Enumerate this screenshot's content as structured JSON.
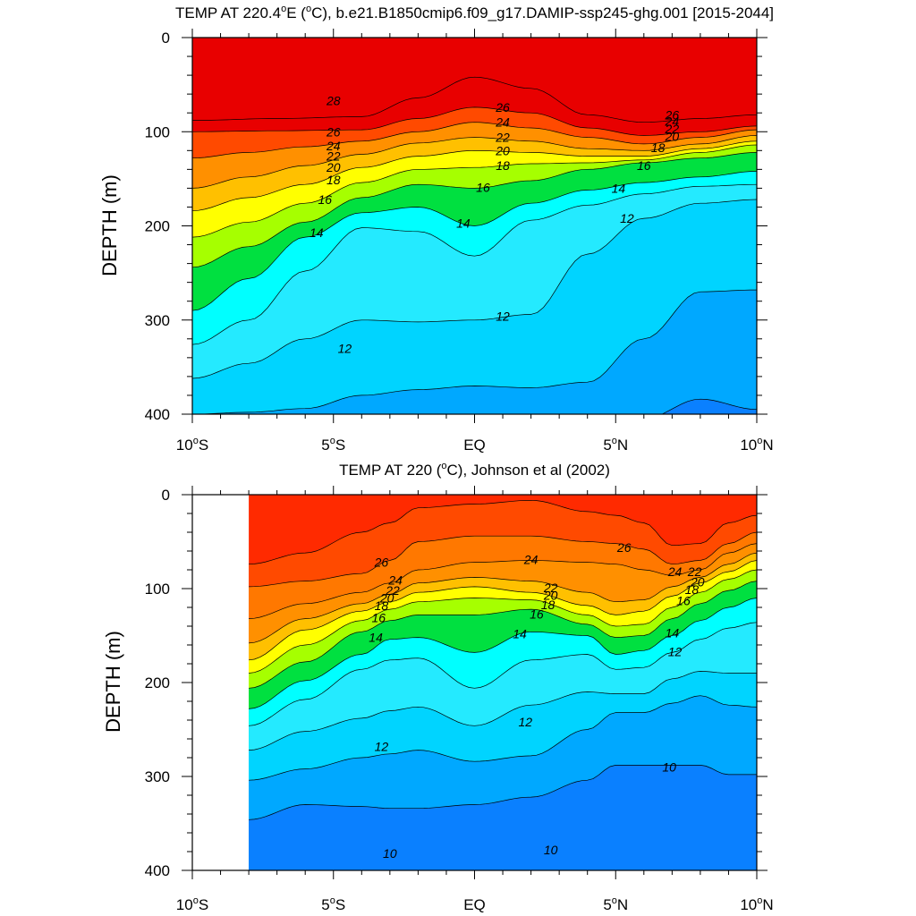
{
  "chart_data": [
    {
      "type": "heatmap",
      "title": "TEMP AT 220.4°E (°C), b.e21.B1850cmip6.f09_g17.DAMIP-ssp245-ghg.001 [2015-2044]",
      "ylabel": "DEPTH (m)",
      "xlabel": "",
      "x_range": [
        -10,
        10
      ],
      "ylim": [
        0,
        400
      ],
      "y_reversed": true,
      "x_ticks": [
        "10°S",
        "5°S",
        "EQ",
        "5°N",
        "10°N"
      ],
      "y_ticks": [
        "0",
        "100",
        "200",
        "300",
        "400"
      ],
      "contour_interval": 1,
      "isotherms": [
        {
          "t": 28,
          "x": [
            -10,
            -7,
            -4,
            -2,
            0,
            2,
            4,
            6,
            8,
            10
          ],
          "d": [
            88,
            86,
            84,
            64,
            42,
            54,
            82,
            90,
            86,
            82
          ],
          "labels": [
            [
              -5,
              67
            ]
          ]
        },
        {
          "t": 26,
          "x": [
            -10,
            -7,
            -4,
            -2,
            0,
            2,
            4,
            6,
            8,
            10
          ],
          "d": [
            100,
            99,
            98,
            86,
            74,
            80,
            96,
            104,
            100,
            94
          ],
          "labels": [
            [
              -5,
              100
            ],
            [
              1,
              74
            ],
            [
              7,
              82
            ]
          ]
        },
        {
          "t": 24,
          "x": [
            -10,
            -8,
            -6,
            -4,
            -2,
            0,
            2,
            4,
            6,
            8,
            10
          ],
          "d": [
            128,
            122,
            116,
            110,
            100,
            90,
            96,
            106,
            113,
            106,
            98
          ],
          "labels": [
            [
              -5,
              115
            ],
            [
              1,
              90
            ],
            [
              7,
              89
            ]
          ]
        },
        {
          "t": 22,
          "x": [
            -10,
            -8,
            -6,
            -4,
            -2,
            0,
            2,
            4,
            6,
            8,
            10
          ],
          "d": [
            160,
            148,
            136,
            124,
            112,
            106,
            110,
            118,
            120,
            113,
            104
          ],
          "labels": [
            [
              -5,
              126
            ],
            [
              1,
              106
            ],
            [
              7,
              97
            ]
          ]
        },
        {
          "t": 20,
          "x": [
            -10,
            -8,
            -6,
            -4,
            -2,
            0,
            2,
            4,
            6,
            8,
            10
          ],
          "d": [
            184,
            170,
            156,
            138,
            126,
            120,
            122,
            126,
            126,
            118,
            110
          ],
          "labels": [
            [
              -5,
              138
            ],
            [
              1,
              120
            ],
            [
              7,
              105
            ]
          ]
        },
        {
          "t": 18,
          "x": [
            -10,
            -8,
            -6,
            -4,
            -2,
            0,
            2,
            4,
            6,
            8,
            10
          ],
          "d": [
            212,
            196,
            176,
            154,
            140,
            138,
            134,
            133,
            130,
            122,
            114
          ],
          "labels": [
            [
              -5,
              151
            ],
            [
              1,
              136
            ],
            [
              6.5,
              117
            ]
          ]
        },
        {
          "t": 16,
          "x": [
            -10,
            -8,
            -6,
            -4,
            -2,
            0,
            2,
            4,
            6,
            8,
            10
          ],
          "d": [
            244,
            222,
            196,
            170,
            156,
            160,
            152,
            140,
            133,
            128,
            122
          ],
          "labels": [
            [
              -5.3,
              172
            ],
            [
              0.3,
              159
            ],
            [
              6,
              136
            ]
          ]
        },
        {
          "t": 14,
          "x": [
            -10,
            -8,
            -6,
            -4,
            -2,
            0,
            2,
            4,
            6,
            8,
            10
          ],
          "d": [
            290,
            256,
            212,
            186,
            180,
            200,
            176,
            162,
            154,
            148,
            142
          ],
          "labels": [
            [
              -5.6,
              207
            ],
            [
              -0.4,
              197
            ],
            [
              5.1,
              160
            ]
          ]
        },
        {
          "t": 13,
          "x": [
            -10,
            -8,
            -6,
            -4,
            -2,
            0,
            2,
            4,
            6,
            8,
            10
          ],
          "d": [
            326,
            300,
            248,
            202,
            206,
            232,
            194,
            178,
            166,
            158,
            156
          ]
        },
        {
          "t": 12,
          "x": [
            -10,
            -8,
            -6,
            -4,
            -2,
            0,
            2,
            4,
            6,
            8,
            10
          ],
          "d": [
            362,
            346,
            320,
            300,
            302,
            300,
            294,
            230,
            192,
            176,
            172
          ],
          "labels": [
            [
              -4.6,
              330
            ],
            [
              1,
              296
            ],
            [
              5.4,
              192
            ]
          ]
        },
        {
          "t": 11,
          "x": [
            -10,
            -8,
            -6,
            -4,
            -2,
            0,
            2,
            4,
            6,
            8,
            10
          ],
          "d": [
            400,
            398,
            394,
            380,
            374,
            370,
            372,
            366,
            320,
            270,
            268
          ]
        },
        {
          "t": 10,
          "x": [
            -10,
            -8,
            -6,
            -4,
            -2,
            0,
            2,
            4,
            6,
            8,
            10
          ],
          "d": [
            420,
            420,
            420,
            420,
            420,
            420,
            420,
            420,
            405,
            384,
            395
          ]
        }
      ]
    },
    {
      "type": "heatmap",
      "title": "TEMP AT 220 (°C), Johnson et al (2002)",
      "ylabel": "DEPTH (m)",
      "xlabel": "",
      "x_range": [
        -10,
        10
      ],
      "data_x_range": [
        -8,
        10
      ],
      "ylim": [
        0,
        400
      ],
      "y_reversed": true,
      "x_ticks": [
        "10°S",
        "5°S",
        "EQ",
        "5°N",
        "10°N"
      ],
      "y_ticks": [
        "0",
        "100",
        "200",
        "300",
        "400"
      ],
      "contour_interval": 1,
      "isotherms": [
        {
          "t": 26,
          "x": [
            -8,
            -6,
            -4,
            -3,
            -2,
            0,
            2,
            4,
            5,
            6,
            7,
            8,
            9,
            10
          ],
          "d": [
            74,
            62,
            40,
            30,
            14,
            10,
            6,
            18,
            22,
            30,
            54,
            52,
            30,
            22
          ],
          "labels": [
            [
              -3.3,
              72
            ],
            [
              5.3,
              56
            ]
          ]
        },
        {
          "t": 25,
          "x": [
            -8,
            -6,
            -4,
            -3,
            -2,
            0,
            2,
            4,
            5,
            6,
            7,
            8,
            9,
            10
          ],
          "d": [
            98,
            92,
            84,
            70,
            50,
            44,
            44,
            50,
            52,
            58,
            74,
            70,
            52,
            40
          ]
        },
        {
          "t": 24,
          "x": [
            -8,
            -6,
            -4,
            -3,
            -2,
            0,
            2,
            4,
            5,
            6,
            7,
            8,
            9,
            10
          ],
          "d": [
            132,
            116,
            104,
            94,
            80,
            72,
            70,
            72,
            74,
            80,
            86,
            80,
            62,
            52
          ],
          "labels": [
            [
              -2.8,
              91
            ],
            [
              2,
              69
            ],
            [
              7.1,
              82
            ]
          ]
        },
        {
          "t": 22,
          "x": [
            -8,
            -6,
            -4,
            -3,
            -2,
            0,
            2,
            4,
            5,
            6,
            7,
            8,
            9,
            10
          ],
          "d": [
            158,
            132,
            116,
            106,
            94,
            88,
            92,
            104,
            114,
            112,
            98,
            88,
            74,
            62
          ],
          "labels": [
            [
              -2.9,
              102
            ],
            [
              2.7,
              99
            ],
            [
              7.8,
              82
            ]
          ]
        },
        {
          "t": 20,
          "x": [
            -8,
            -6,
            -4,
            -3,
            -2,
            0,
            2,
            4,
            5,
            6,
            7,
            8,
            9,
            10
          ],
          "d": [
            176,
            144,
            124,
            114,
            104,
            98,
            104,
            118,
            128,
            124,
            108,
            94,
            82,
            70
          ],
          "labels": [
            [
              -3.1,
              110
            ],
            [
              2.7,
              107
            ],
            [
              7.9,
              93
            ]
          ]
        },
        {
          "t": 18,
          "x": [
            -8,
            -6,
            -4,
            -3,
            -2,
            0,
            2,
            4,
            5,
            6,
            7,
            8,
            9,
            10
          ],
          "d": [
            190,
            160,
            134,
            122,
            114,
            110,
            112,
            128,
            140,
            138,
            120,
            104,
            90,
            80
          ],
          "labels": [
            [
              -3.3,
              118
            ],
            [
              2.6,
              117
            ],
            [
              7.7,
              101
            ]
          ]
        },
        {
          "t": 16,
          "x": [
            -8,
            -6,
            -4,
            -3,
            -2,
            0,
            2,
            4,
            5,
            6,
            7,
            8,
            9,
            10
          ],
          "d": [
            206,
            178,
            146,
            134,
            128,
            128,
            122,
            138,
            152,
            150,
            132,
            116,
            102,
            92
          ],
          "labels": [
            [
              -3.4,
              131
            ],
            [
              2.2,
              127
            ],
            [
              7.4,
              113
            ]
          ]
        },
        {
          "t": 14,
          "x": [
            -8,
            -6,
            -4,
            -3,
            -2,
            0,
            2,
            4,
            5,
            6,
            7,
            8,
            9,
            10
          ],
          "d": [
            228,
            198,
            170,
            154,
            152,
            168,
            146,
            150,
            170,
            166,
            150,
            134,
            120,
            110
          ],
          "labels": [
            [
              -3.5,
              152
            ],
            [
              1.6,
              148
            ],
            [
              7,
              147
            ]
          ]
        },
        {
          "t": 13,
          "x": [
            -8,
            -6,
            -4,
            -3,
            -2,
            0,
            2,
            4,
            5,
            6,
            7,
            8,
            9,
            10
          ],
          "d": [
            246,
            218,
            186,
            176,
            174,
            206,
            176,
            170,
            186,
            184,
            168,
            154,
            142,
            136
          ]
        },
        {
          "t": 12,
          "x": [
            -8,
            -6,
            -4,
            -3,
            -2,
            0,
            2,
            4,
            5,
            6,
            7,
            8,
            9,
            10
          ],
          "d": [
            272,
            252,
            238,
            230,
            226,
            246,
            224,
            210,
            212,
            212,
            196,
            188,
            190,
            190
          ],
          "labels": [
            [
              -3.3,
              268
            ],
            [
              1.8,
              242
            ],
            [
              7.1,
              167
            ]
          ]
        },
        {
          "t": 11,
          "x": [
            -8,
            -6,
            -4,
            -3,
            -2,
            0,
            2,
            4,
            5,
            6,
            7,
            8,
            9,
            10
          ],
          "d": [
            304,
            292,
            280,
            276,
            272,
            284,
            278,
            250,
            232,
            232,
            222,
            214,
            224,
            226
          ]
        },
        {
          "t": 10,
          "x": [
            -8,
            -6,
            -4,
            -3,
            -2,
            0,
            2,
            4,
            5,
            6,
            7,
            8,
            9,
            10
          ],
          "d": [
            346,
            330,
            332,
            334,
            334,
            330,
            322,
            304,
            288,
            288,
            288,
            288,
            298,
            298
          ],
          "labels": [
            [
              -3,
              382
            ],
            [
              2.7,
              378
            ],
            [
              6.9,
              290
            ]
          ]
        },
        {
          "t": 9,
          "x": [
            -8,
            -6,
            -4,
            -3,
            -2,
            0,
            2,
            4,
            5,
            6,
            7,
            8,
            9,
            10
          ],
          "d": [
            420,
            420,
            420,
            420,
            420,
            420,
            420,
            420,
            420,
            420,
            420,
            420,
            420,
            420
          ]
        }
      ]
    }
  ],
  "colors": {
    "background": "#ffffff",
    "empty_region": "#ffffff",
    "temp_fill": {
      "9": "#0050e8",
      "10": "#0a80ff",
      "11": "#00a8ff",
      "12": "#00d4ff",
      "13": "#24eaff",
      "14": "#00ffff",
      "15": "#22e2b8",
      "16": "#00e040",
      "17": "#00f000",
      "18": "#a6ff00",
      "19": "#e6ff00",
      "20": "#ffff00",
      "21": "#ffe000",
      "22": "#ffc000",
      "23": "#ffa800",
      "24": "#ff9000",
      "25": "#ff7800",
      "26": "#ff4a00",
      "27": "#ff2a00",
      "28": "#e80000"
    }
  }
}
